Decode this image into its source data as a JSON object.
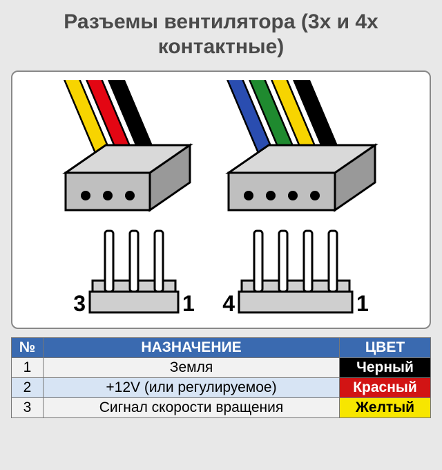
{
  "title": "Разъемы вентилятора (3х и 4х контактные)",
  "colors": {
    "panel_bg": "#ffffff",
    "panel_border": "#888888",
    "page_bg": "#e8e8e8",
    "title_color": "#4a4a4a",
    "header_bg": "#3a6ab0",
    "header_fg": "#ffffff",
    "row_odd_bg": "#f2f2f2",
    "row_even_bg": "#d7e4f4",
    "cell_border": "#777777",
    "connector_front": "#bfbfbf",
    "connector_top": "#d9d9d9",
    "connector_side": "#999999",
    "stroke": "#000000",
    "hole": "#000000",
    "header_body": "#cfcfcf",
    "pin_fill": "#ffffff",
    "wire_yellow": "#f7d400",
    "wire_red": "#e30613",
    "wire_black": "#000000",
    "wire_blue": "#2a4db0",
    "wire_green": "#1f8a2f",
    "label_black_bg": "#000000",
    "label_black_fg": "#ffffff",
    "label_red_bg": "#d21414",
    "label_red_fg": "#ffffff",
    "label_yellow_bg": "#f7e600",
    "label_yellow_fg": "#000000"
  },
  "connectors": [
    {
      "name": "3-pin",
      "wires": [
        "wire_yellow",
        "wire_red",
        "wire_black"
      ]
    },
    {
      "name": "4-pin",
      "wires": [
        "wire_blue",
        "wire_green",
        "wire_yellow",
        "wire_black"
      ]
    }
  ],
  "headers": [
    {
      "pins": 3,
      "left_label": "3",
      "right_label": "1"
    },
    {
      "pins": 4,
      "left_label": "4",
      "right_label": "1"
    }
  ],
  "table": {
    "columns": {
      "num": "№",
      "purpose": "НАЗНАЧЕНИЕ",
      "color": "ЦВЕТ"
    },
    "rows": [
      {
        "num": "1",
        "purpose": "Земля",
        "color_label": "Черный",
        "bg_key": "label_black_bg",
        "fg_key": "label_black_fg"
      },
      {
        "num": "2",
        "purpose": "+12V (или регулируемое)",
        "color_label": "Красный",
        "bg_key": "label_red_bg",
        "fg_key": "label_red_fg"
      },
      {
        "num": "3",
        "purpose": "Сигнал скорости вращения",
        "color_label": "Желтый",
        "bg_key": "label_yellow_bg",
        "fg_key": "label_yellow_fg"
      }
    ]
  }
}
